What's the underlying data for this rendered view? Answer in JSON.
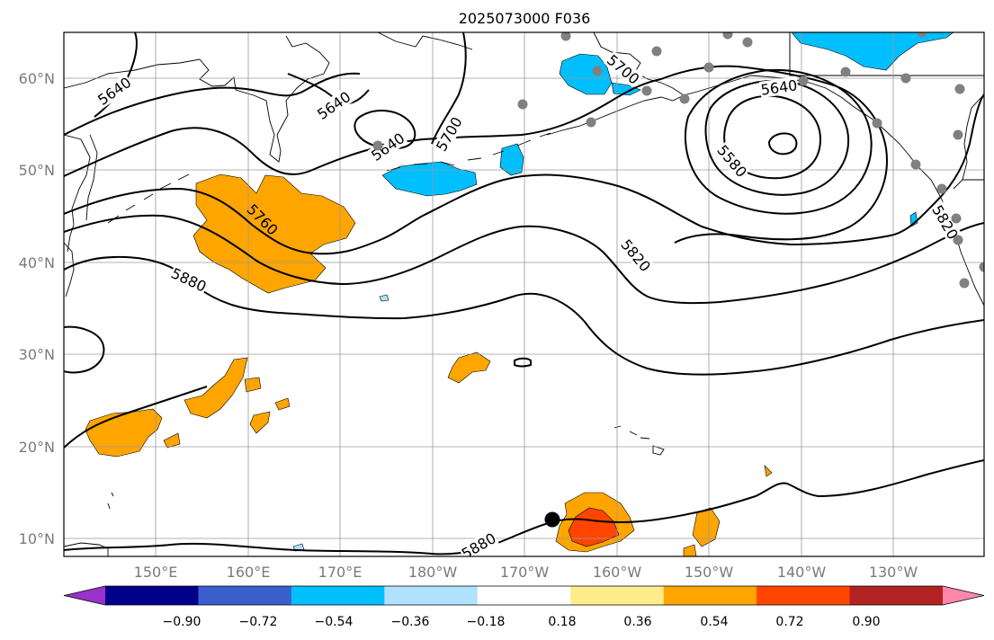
{
  "title": "2025073000 F036",
  "latitude_labels": [
    "60°N",
    "50°N",
    "40°N",
    "30°N",
    "20°N",
    "10°N"
  ],
  "longitude_labels": [
    "150°E",
    "160°E",
    "170°E",
    "180°W",
    "170°W",
    "160°W",
    "150°W",
    "140°W",
    "130°W"
  ],
  "contour_labels": [
    "5640",
    "5640",
    "5640",
    "5700",
    "5700",
    "5640",
    "5580",
    "5760",
    "5880",
    "5820",
    "5820",
    "5880"
  ],
  "colorbar": {
    "tick_labels": [
      "−0.90",
      "−0.72",
      "−0.54",
      "−0.36",
      "−0.18",
      "0.18",
      "0.36",
      "0.54",
      "0.72",
      "0.90"
    ],
    "colors": [
      "#9932cc",
      "#00008b",
      "#3a5fcd",
      "#00bfff",
      "#b0e2ff",
      "#ffffff",
      "#ffec8b",
      "#ffa500",
      "#ff4500",
      "#b22222",
      "#ff88aa"
    ]
  }
}
